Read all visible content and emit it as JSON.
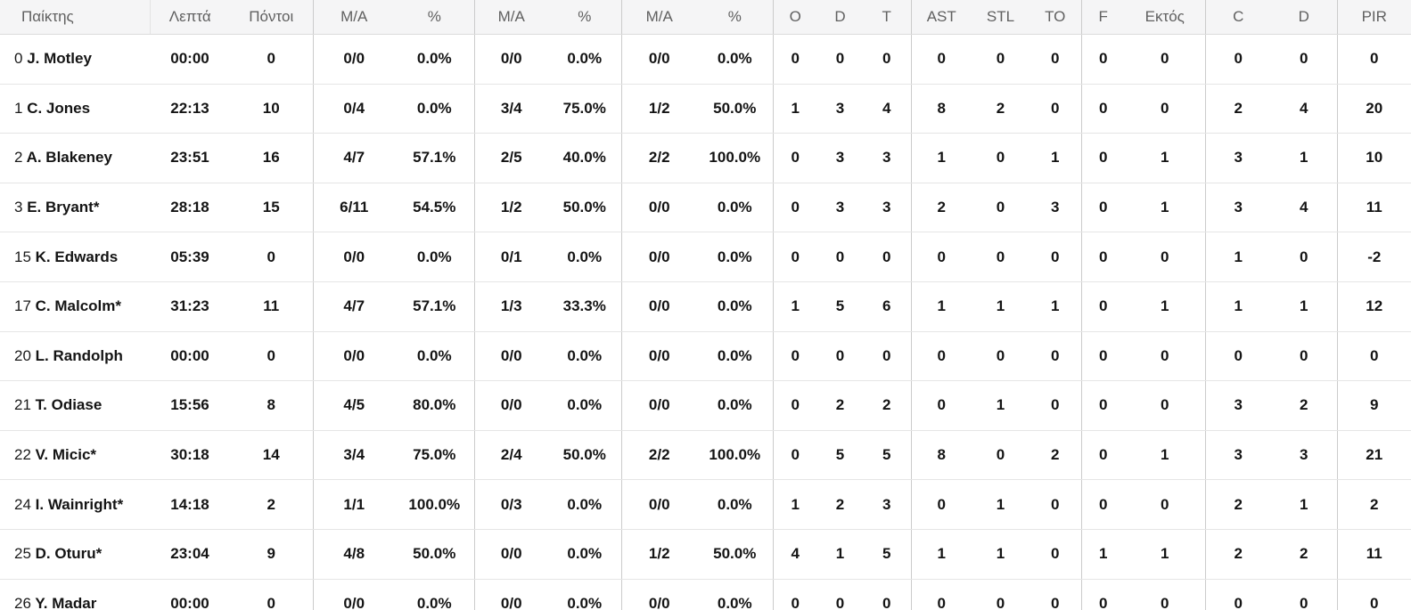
{
  "table": {
    "columns": [
      {
        "label": "Παίκτης",
        "name": "player"
      },
      {
        "label": "Λεπτά",
        "name": "minutes"
      },
      {
        "label": "Πόντοι",
        "name": "points"
      },
      {
        "label": "Μ/Α",
        "name": "fg2-made-attempted",
        "group_start": true
      },
      {
        "label": "%",
        "name": "fg2-percent"
      },
      {
        "label": "Μ/Α",
        "name": "fg3-made-attempted",
        "group_start": true
      },
      {
        "label": "%",
        "name": "fg3-percent"
      },
      {
        "label": "Μ/Α",
        "name": "ft-made-attempted",
        "group_start": true
      },
      {
        "label": "%",
        "name": "ft-percent"
      },
      {
        "label": "O",
        "name": "rebounds-offensive",
        "group_start": true
      },
      {
        "label": "D",
        "name": "rebounds-defensive"
      },
      {
        "label": "T",
        "name": "rebounds-total"
      },
      {
        "label": "AST",
        "name": "assists",
        "group_start": true
      },
      {
        "label": "STL",
        "name": "steals"
      },
      {
        "label": "TO",
        "name": "turnovers"
      },
      {
        "label": "F",
        "name": "fouls",
        "group_start": true
      },
      {
        "label": "Εκτός",
        "name": "fouls-drawn"
      },
      {
        "label": "C",
        "name": "blocks-favour",
        "group_start": true
      },
      {
        "label": "D",
        "name": "blocks-against"
      },
      {
        "label": "PIR",
        "name": "pir",
        "group_start": true
      }
    ],
    "rows": [
      {
        "number": "0",
        "name": "J. Motley",
        "stats": [
          "00:00",
          "0",
          "0/0",
          "0.0%",
          "0/0",
          "0.0%",
          "0/0",
          "0.0%",
          "0",
          "0",
          "0",
          "0",
          "0",
          "0",
          "0",
          "0",
          "0",
          "0",
          "0"
        ]
      },
      {
        "number": "1",
        "name": "C. Jones",
        "stats": [
          "22:13",
          "10",
          "0/4",
          "0.0%",
          "3/4",
          "75.0%",
          "1/2",
          "50.0%",
          "1",
          "3",
          "4",
          "8",
          "2",
          "0",
          "0",
          "0",
          "2",
          "4",
          "20"
        ]
      },
      {
        "number": "2",
        "name": "A. Blakeney",
        "stats": [
          "23:51",
          "16",
          "4/7",
          "57.1%",
          "2/5",
          "40.0%",
          "2/2",
          "100.0%",
          "0",
          "3",
          "3",
          "1",
          "0",
          "1",
          "0",
          "1",
          "3",
          "1",
          "10"
        ]
      },
      {
        "number": "3",
        "name": "E. Bryant*",
        "stats": [
          "28:18",
          "15",
          "6/11",
          "54.5%",
          "1/2",
          "50.0%",
          "0/0",
          "0.0%",
          "0",
          "3",
          "3",
          "2",
          "0",
          "3",
          "0",
          "1",
          "3",
          "4",
          "11"
        ]
      },
      {
        "number": "15",
        "name": "K. Edwards",
        "stats": [
          "05:39",
          "0",
          "0/0",
          "0.0%",
          "0/1",
          "0.0%",
          "0/0",
          "0.0%",
          "0",
          "0",
          "0",
          "0",
          "0",
          "0",
          "0",
          "0",
          "1",
          "0",
          "-2"
        ]
      },
      {
        "number": "17",
        "name": "C. Malcolm*",
        "stats": [
          "31:23",
          "11",
          "4/7",
          "57.1%",
          "1/3",
          "33.3%",
          "0/0",
          "0.0%",
          "1",
          "5",
          "6",
          "1",
          "1",
          "1",
          "0",
          "1",
          "1",
          "1",
          "12"
        ]
      },
      {
        "number": "20",
        "name": "L. Randolph",
        "stats": [
          "00:00",
          "0",
          "0/0",
          "0.0%",
          "0/0",
          "0.0%",
          "0/0",
          "0.0%",
          "0",
          "0",
          "0",
          "0",
          "0",
          "0",
          "0",
          "0",
          "0",
          "0",
          "0"
        ]
      },
      {
        "number": "21",
        "name": "T. Odiase",
        "stats": [
          "15:56",
          "8",
          "4/5",
          "80.0%",
          "0/0",
          "0.0%",
          "0/0",
          "0.0%",
          "0",
          "2",
          "2",
          "0",
          "1",
          "0",
          "0",
          "0",
          "3",
          "2",
          "9"
        ]
      },
      {
        "number": "22",
        "name": "V. Micic*",
        "stats": [
          "30:18",
          "14",
          "3/4",
          "75.0%",
          "2/4",
          "50.0%",
          "2/2",
          "100.0%",
          "0",
          "5",
          "5",
          "8",
          "0",
          "2",
          "0",
          "1",
          "3",
          "3",
          "21"
        ]
      },
      {
        "number": "24",
        "name": "I. Wainright*",
        "stats": [
          "14:18",
          "2",
          "1/1",
          "100.0%",
          "0/3",
          "0.0%",
          "0/0",
          "0.0%",
          "1",
          "2",
          "3",
          "0",
          "1",
          "0",
          "0",
          "0",
          "2",
          "1",
          "2"
        ]
      },
      {
        "number": "25",
        "name": "D. Oturu*",
        "stats": [
          "23:04",
          "9",
          "4/8",
          "50.0%",
          "0/0",
          "0.0%",
          "1/2",
          "50.0%",
          "4",
          "1",
          "5",
          "1",
          "1",
          "0",
          "1",
          "1",
          "2",
          "2",
          "11"
        ]
      },
      {
        "number": "26",
        "name": "Y. Madar",
        "stats": [
          "00:00",
          "0",
          "0/0",
          "0.0%",
          "0/0",
          "0.0%",
          "0/0",
          "0.0%",
          "0",
          "0",
          "0",
          "0",
          "0",
          "0",
          "0",
          "0",
          "0",
          "0",
          "0"
        ]
      }
    ]
  },
  "colors": {
    "header_background": "#f5f5f6",
    "header_text": "#606060",
    "group_divider": "#cbcbcb",
    "row_border": "#e5e5e5",
    "stat_text": "#141414"
  }
}
